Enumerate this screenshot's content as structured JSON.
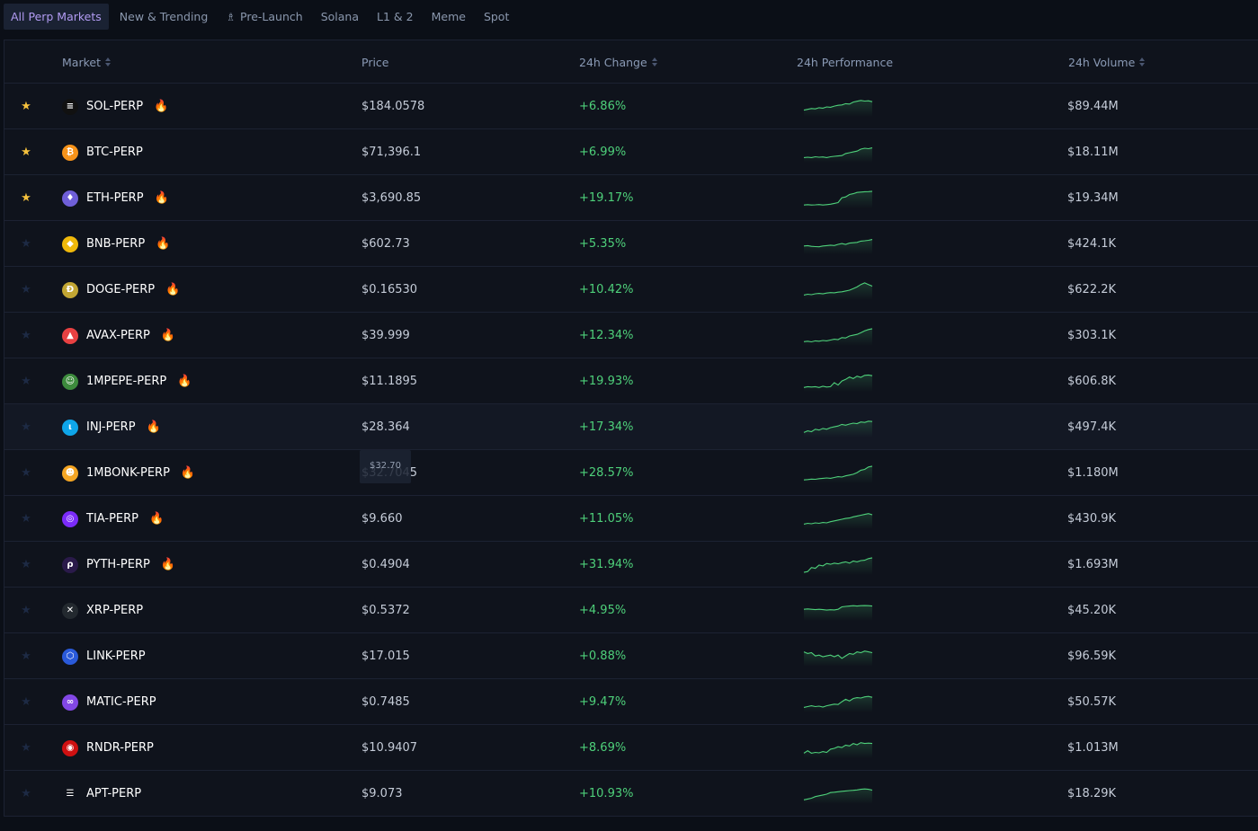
{
  "tabs": [
    {
      "label": "All Perp Markets",
      "active": true
    },
    {
      "label": "New & Trending"
    },
    {
      "label": "Pre-Launch",
      "icon": "rocket-icon"
    },
    {
      "label": "Solana"
    },
    {
      "label": "L1 & 2"
    },
    {
      "label": "Meme"
    },
    {
      "label": "Spot"
    }
  ],
  "columns": {
    "market": "Market",
    "price": "Price",
    "change": "24h Change",
    "performance": "24h Performance",
    "volume": "24h Volume"
  },
  "tooltip": "$32.70",
  "colors": {
    "positive": "#4ed07a",
    "favorite_star": "#f5c13d",
    "accent_tab": "#b19bf2"
  },
  "rows": [
    {
      "symbol": "SOL-PERP",
      "price": "$184.0578",
      "change": "+6.86%",
      "volume": "$89.44M",
      "favorite": true,
      "hot": true,
      "icon": "solana-icon",
      "coin_color": "#111111",
      "spark": [
        0.3,
        0.35,
        0.4,
        0.38,
        0.45,
        0.42,
        0.5,
        0.48,
        0.55,
        0.6,
        0.62,
        0.7,
        0.68,
        0.8,
        0.85,
        0.9,
        0.86,
        0.88,
        0.82
      ]
    },
    {
      "symbol": "BTC-PERP",
      "price": "$71,396.1",
      "change": "+6.99%",
      "volume": "$18.11M",
      "favorite": true,
      "hot": false,
      "icon": "bitcoin-icon",
      "coin_color": "#f7931a",
      "spark": [
        0.2,
        0.22,
        0.2,
        0.25,
        0.22,
        0.24,
        0.2,
        0.25,
        0.28,
        0.3,
        0.32,
        0.45,
        0.5,
        0.55,
        0.6,
        0.72,
        0.78,
        0.75,
        0.8
      ]
    },
    {
      "symbol": "ETH-PERP",
      "price": "$3,690.85",
      "change": "+19.17%",
      "volume": "$19.34M",
      "favorite": true,
      "hot": true,
      "icon": "ethereum-icon",
      "coin_color": "#6f5fd8",
      "spark": [
        0.1,
        0.12,
        0.1,
        0.11,
        0.13,
        0.1,
        0.12,
        0.15,
        0.2,
        0.25,
        0.55,
        0.6,
        0.75,
        0.8,
        0.88,
        0.9,
        0.92,
        0.93,
        0.95
      ]
    },
    {
      "symbol": "BNB-PERP",
      "price": "$602.73",
      "change": "+5.35%",
      "volume": "$424.1K",
      "favorite": false,
      "hot": true,
      "icon": "bnb-icon",
      "coin_color": "#f0b90b",
      "spark": [
        0.4,
        0.42,
        0.38,
        0.36,
        0.35,
        0.4,
        0.42,
        0.45,
        0.43,
        0.5,
        0.55,
        0.5,
        0.58,
        0.6,
        0.62,
        0.7,
        0.72,
        0.75,
        0.8
      ]
    },
    {
      "symbol": "DOGE-PERP",
      "price": "$0.16530",
      "change": "+10.42%",
      "volume": "$622.2K",
      "favorite": false,
      "hot": true,
      "icon": "doge-icon",
      "coin_color": "#c2a633",
      "spark": [
        0.2,
        0.25,
        0.22,
        0.28,
        0.3,
        0.27,
        0.32,
        0.35,
        0.34,
        0.38,
        0.4,
        0.45,
        0.5,
        0.6,
        0.7,
        0.85,
        0.95,
        0.85,
        0.75
      ]
    },
    {
      "symbol": "AVAX-PERP",
      "price": "$39.999",
      "change": "+12.34%",
      "volume": "$303.1K",
      "favorite": false,
      "hot": true,
      "icon": "avalanche-icon",
      "coin_color": "#e84142",
      "spark": [
        0.15,
        0.18,
        0.14,
        0.2,
        0.18,
        0.22,
        0.2,
        0.25,
        0.3,
        0.28,
        0.4,
        0.38,
        0.5,
        0.55,
        0.6,
        0.7,
        0.82,
        0.9,
        0.95
      ]
    },
    {
      "symbol": "1MPEPE-PERP",
      "price": "$11.1895",
      "change": "+19.93%",
      "volume": "$606.8K",
      "favorite": false,
      "hot": true,
      "icon": "pepe-icon",
      "coin_color": "#3d8b3d",
      "spark": [
        0.15,
        0.2,
        0.18,
        0.2,
        0.15,
        0.22,
        0.18,
        0.2,
        0.45,
        0.3,
        0.55,
        0.65,
        0.8,
        0.7,
        0.85,
        0.78,
        0.9,
        0.92,
        0.88
      ]
    },
    {
      "symbol": "INJ-PERP",
      "price": "$28.364",
      "change": "+17.34%",
      "volume": "$497.4K",
      "favorite": false,
      "hot": true,
      "icon": "injective-icon",
      "coin_color": "#0ea5e9",
      "hover": true,
      "spark": [
        0.2,
        0.3,
        0.25,
        0.4,
        0.35,
        0.45,
        0.4,
        0.5,
        0.55,
        0.6,
        0.7,
        0.65,
        0.72,
        0.78,
        0.75,
        0.85,
        0.82,
        0.9,
        0.88
      ]
    },
    {
      "symbol": "1MBONK-PERP",
      "price": "$32.7045",
      "change": "+28.57%",
      "volume": "$1.180M",
      "favorite": false,
      "hot": true,
      "icon": "bonk-icon",
      "coin_color": "#f5a623",
      "spark": [
        0.1,
        0.12,
        0.15,
        0.14,
        0.18,
        0.2,
        0.22,
        0.2,
        0.25,
        0.3,
        0.28,
        0.35,
        0.4,
        0.45,
        0.55,
        0.7,
        0.75,
        0.9,
        0.95
      ]
    },
    {
      "symbol": "TIA-PERP",
      "price": "$9.660",
      "change": "+11.05%",
      "volume": "$430.9K",
      "favorite": false,
      "hot": true,
      "icon": "celestia-icon",
      "coin_color": "#7b2bf9",
      "spark": [
        0.2,
        0.25,
        0.22,
        0.28,
        0.25,
        0.3,
        0.28,
        0.35,
        0.4,
        0.45,
        0.5,
        0.55,
        0.58,
        0.65,
        0.7,
        0.75,
        0.8,
        0.85,
        0.78
      ]
    },
    {
      "symbol": "PYTH-PERP",
      "price": "$0.4904",
      "change": "+31.94%",
      "volume": "$1.693M",
      "favorite": false,
      "hot": true,
      "icon": "pyth-icon",
      "coin_color": "#2a1a4a",
      "spark": [
        0.05,
        0.1,
        0.35,
        0.3,
        0.5,
        0.45,
        0.6,
        0.55,
        0.62,
        0.58,
        0.65,
        0.7,
        0.62,
        0.75,
        0.7,
        0.78,
        0.8,
        0.9,
        0.95
      ]
    },
    {
      "symbol": "XRP-PERP",
      "price": "$0.5372",
      "change": "+4.95%",
      "volume": "$45.20K",
      "favorite": false,
      "hot": false,
      "icon": "xrp-icon",
      "coin_color": "#23292f",
      "spark": [
        0.6,
        0.62,
        0.6,
        0.58,
        0.6,
        0.58,
        0.55,
        0.57,
        0.56,
        0.6,
        0.75,
        0.78,
        0.8,
        0.82,
        0.8,
        0.82,
        0.83,
        0.82,
        0.8
      ]
    },
    {
      "symbol": "LINK-PERP",
      "price": "$17.015",
      "change": "+0.88%",
      "volume": "$96.59K",
      "favorite": false,
      "hot": false,
      "icon": "chainlink-icon",
      "coin_color": "#2a5ada",
      "spark": [
        0.8,
        0.7,
        0.75,
        0.55,
        0.6,
        0.5,
        0.55,
        0.6,
        0.5,
        0.6,
        0.4,
        0.55,
        0.7,
        0.65,
        0.8,
        0.75,
        0.85,
        0.8,
        0.75
      ]
    },
    {
      "symbol": "MATIC-PERP",
      "price": "$0.7485",
      "change": "+9.47%",
      "volume": "$50.57K",
      "favorite": false,
      "hot": false,
      "icon": "polygon-icon",
      "coin_color": "#8247e5",
      "spark": [
        0.2,
        0.25,
        0.3,
        0.25,
        0.28,
        0.22,
        0.3,
        0.35,
        0.4,
        0.38,
        0.55,
        0.7,
        0.6,
        0.75,
        0.8,
        0.78,
        0.85,
        0.88,
        0.82
      ]
    },
    {
      "symbol": "RNDR-PERP",
      "price": "$10.9407",
      "change": "+8.69%",
      "volume": "$1.013M",
      "favorite": false,
      "hot": false,
      "icon": "render-icon",
      "coin_color": "#cf1011",
      "spark": [
        0.2,
        0.35,
        0.2,
        0.25,
        0.22,
        0.3,
        0.25,
        0.45,
        0.5,
        0.6,
        0.55,
        0.7,
        0.65,
        0.8,
        0.72,
        0.85,
        0.8,
        0.82,
        0.8
      ]
    },
    {
      "symbol": "APT-PERP",
      "price": "$9.073",
      "change": "+10.93%",
      "volume": "$18.29K",
      "favorite": false,
      "hot": false,
      "icon": "aptos-icon",
      "coin_color": "#ffffff",
      "spark": [
        0.15,
        0.2,
        0.25,
        0.35,
        0.4,
        0.45,
        0.5,
        0.6,
        0.62,
        0.65,
        0.68,
        0.7,
        0.72,
        0.74,
        0.76,
        0.8,
        0.82,
        0.8,
        0.75
      ]
    }
  ]
}
